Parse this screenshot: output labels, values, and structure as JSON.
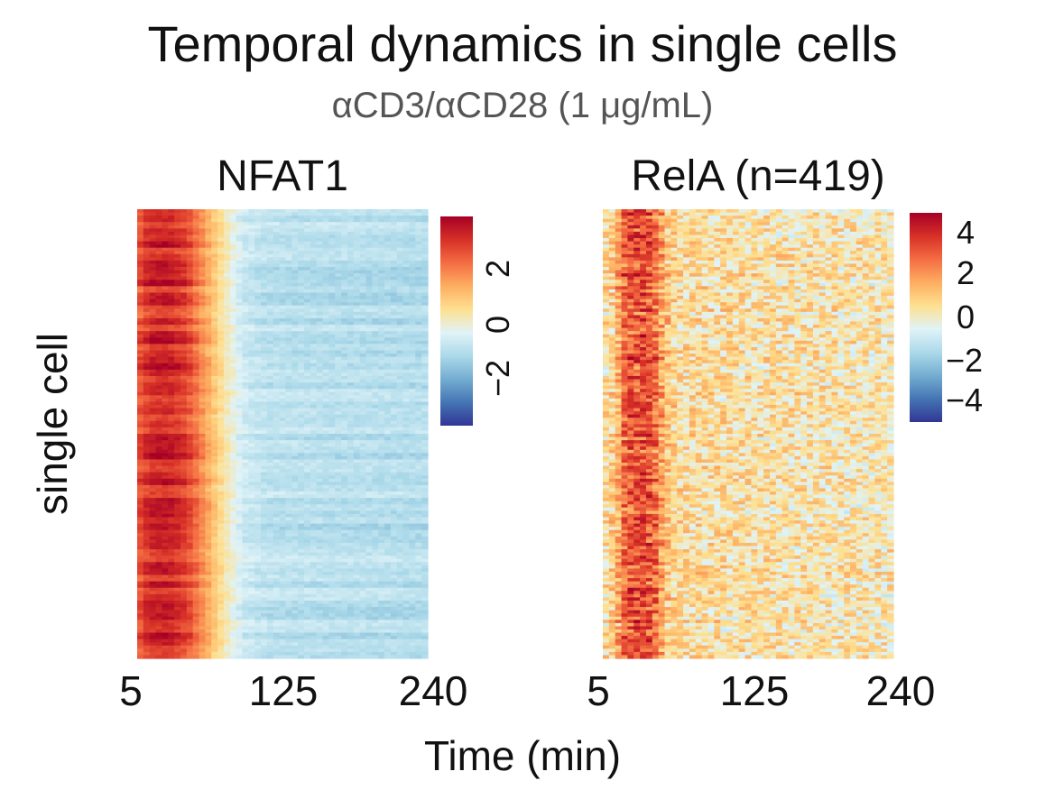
{
  "chart_data": [
    {
      "type": "heatmap",
      "title": "Temporal dynamics in single cells",
      "subtitle": "αCD3/αCD28 (1 μg/mL)",
      "panel_title": "NFAT1",
      "xlabel": "Time (min)",
      "ylabel": "single cell",
      "x_ticks": [
        "5",
        "125",
        "240"
      ],
      "x_range": [
        5,
        240
      ],
      "n_cells": 419,
      "colorbar_ticks": [
        "2",
        "0",
        "−2"
      ],
      "colorbar_range": [
        -3.2,
        3.2
      ],
      "colormap": [
        "#313695",
        "#4575b4",
        "#74add1",
        "#abd9e9",
        "#e0f3f8",
        "#fee090",
        "#fdae61",
        "#f46d43",
        "#d73027",
        "#a50026"
      ],
      "mean_profile": [
        {
          "t": 5,
          "v": 2.0
        },
        {
          "t": 15,
          "v": 2.6
        },
        {
          "t": 30,
          "v": 2.7
        },
        {
          "t": 45,
          "v": 2.3
        },
        {
          "t": 55,
          "v": 1.6
        },
        {
          "t": 65,
          "v": 0.9
        },
        {
          "t": 75,
          "v": 0.2
        },
        {
          "t": 90,
          "v": -0.6
        },
        {
          "t": 110,
          "v": -0.85
        },
        {
          "t": 240,
          "v": -0.95
        }
      ]
    },
    {
      "type": "heatmap",
      "panel_title": "RelA (n=419)",
      "x_ticks": [
        "5",
        "125",
        "240"
      ],
      "x_range": [
        5,
        240
      ],
      "n_cells": 419,
      "colorbar_ticks": [
        "4",
        "2",
        "0",
        "−2",
        "−4"
      ],
      "colorbar_range": [
        -4.6,
        4.6
      ],
      "colormap": [
        "#313695",
        "#4575b4",
        "#74add1",
        "#abd9e9",
        "#e0f3f8",
        "#fee090",
        "#fdae61",
        "#f46d43",
        "#d73027",
        "#a50026"
      ],
      "mean_profile": [
        {
          "t": 5,
          "v": 0.3
        },
        {
          "t": 15,
          "v": 0.9
        },
        {
          "t": 22,
          "v": 2.6
        },
        {
          "t": 30,
          "v": 3.1
        },
        {
          "t": 40,
          "v": 3.0
        },
        {
          "t": 48,
          "v": 2.5
        },
        {
          "t": 55,
          "v": 1.2
        },
        {
          "t": 65,
          "v": 0.5
        },
        {
          "t": 240,
          "v": 0.2
        }
      ]
    }
  ]
}
